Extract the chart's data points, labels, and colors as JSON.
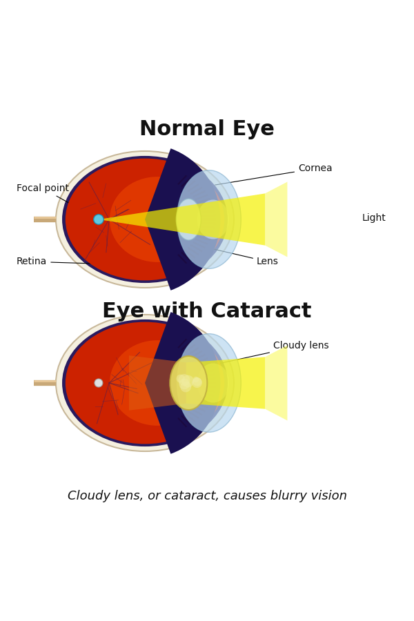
{
  "title_normal": "Normal Eye",
  "title_cataract": "Eye with Cataract",
  "caption": "Cloudy lens, or cataract, causes blurry vision",
  "bg_color": "#ffffff",
  "labels_normal": {
    "focal_point": "Focal point",
    "cornea": "Cornea",
    "light": "Light",
    "retina": "Retina",
    "lens": "Lens"
  },
  "labels_cataract": {
    "cloudy_lens": "Cloudy lens"
  }
}
